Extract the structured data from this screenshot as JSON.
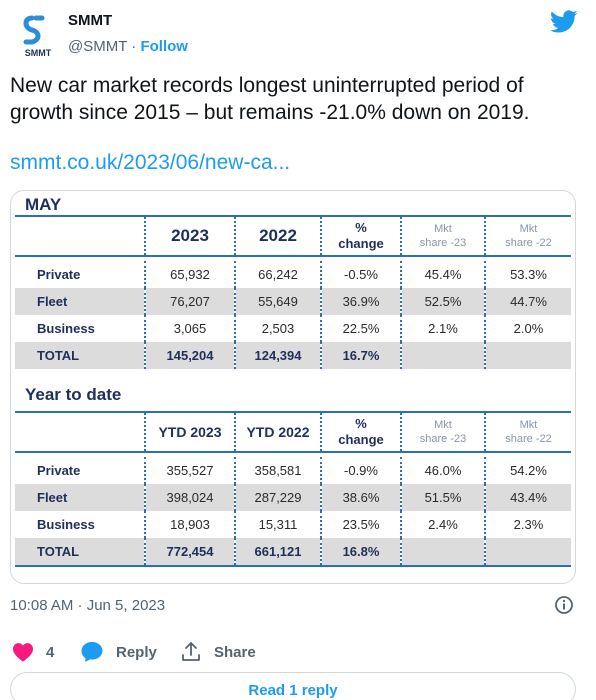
{
  "author": {
    "name": "SMMT",
    "handle": "@SMMT",
    "separator": " · ",
    "follow_label": "Follow",
    "logo_text": "SMMT"
  },
  "tweet": {
    "text": "New car market records longest uninterrupted period of growth since 2015 – but remains -21.0% down on 2019.",
    "link": "smmt.co.uk/2023/06/new-ca..."
  },
  "may_table": {
    "title": "MAY",
    "headers": [
      "2023",
      "2022",
      "%",
      "change",
      "Mkt",
      "share -23",
      "Mkt",
      "share -22"
    ],
    "rows": [
      {
        "label": "Private",
        "c1": "65,932",
        "c2": "66,242",
        "change": "-0.5%",
        "s23": "45.4%",
        "s22": "53.3%"
      },
      {
        "label": "Fleet",
        "c1": "76,207",
        "c2": "55,649",
        "change": "36.9%",
        "s23": "52.5%",
        "s22": "44.7%"
      },
      {
        "label": "Business",
        "c1": "3,065",
        "c2": "2,503",
        "change": "22.5%",
        "s23": "2.1%",
        "s22": "2.0%"
      },
      {
        "label": "TOTAL",
        "c1": "145,204",
        "c2": "124,394",
        "change": "16.7%",
        "s23": "",
        "s22": ""
      }
    ]
  },
  "ytd_table": {
    "title": "Year to date",
    "headers": [
      "YTD 2023",
      "YTD 2022",
      "%",
      "change",
      "Mkt",
      "share -23",
      "Mkt",
      "share -22"
    ],
    "rows": [
      {
        "label": "Private",
        "c1": "355,527",
        "c2": "358,581",
        "change": "-0.9%",
        "s23": "46.0%",
        "s22": "54.2%"
      },
      {
        "label": "Fleet",
        "c1": "398,024",
        "c2": "287,229",
        "change": "38.6%",
        "s23": "51.5%",
        "s22": "43.4%"
      },
      {
        "label": "Business",
        "c1": "18,903",
        "c2": "15,311",
        "change": "23.5%",
        "s23": "2.4%",
        "s22": "2.3%"
      },
      {
        "label": "TOTAL",
        "c1": "772,454",
        "c2": "661,121",
        "change": "16.8%",
        "s23": "",
        "s22": ""
      }
    ]
  },
  "meta": {
    "timestamp": "10:08 AM · Jun 5, 2023"
  },
  "actions": {
    "like_count": "4",
    "reply_label": "Reply",
    "share_label": "Share",
    "read_reply_label": "Read 1 reply"
  },
  "colors": {
    "accent": "#1d9bf0",
    "like": "#f91880",
    "table_navy": "#1e2f5c",
    "table_blue": "#2a6fbf",
    "row_shade": "#dcdcdc"
  },
  "icons": [
    "smmt-logo",
    "twitter-bird-icon",
    "info-icon",
    "heart-icon",
    "reply-bubble-icon",
    "share-icon"
  ]
}
